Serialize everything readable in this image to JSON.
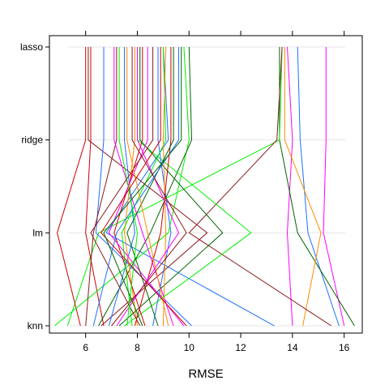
{
  "chart_data": {
    "type": "line",
    "title": "",
    "xlabel": "RMSE",
    "ylabel": "",
    "categories": [
      "knn",
      "lm",
      "ridge",
      "lasso"
    ],
    "xlim": [
      4.6,
      16.7
    ],
    "x_ticks": [
      6,
      8,
      10,
      12,
      14,
      16
    ],
    "grid": true,
    "legend": "none",
    "series_format": "values ordered as [knn, lm, ridge, lasso]",
    "series": [
      {
        "color": "#FF00FF",
        "values": [
          16.0,
          15.2,
          15.3,
          15.3
        ]
      },
      {
        "color": "#FF00FF",
        "values": [
          14.0,
          13.8,
          14.0,
          13.8
        ]
      },
      {
        "color": "#1F6FFF",
        "values": [
          15.8,
          14.6,
          14.3,
          14.2
        ]
      },
      {
        "color": "#006400",
        "values": [
          16.4,
          14.2,
          13.5,
          13.5
        ]
      },
      {
        "color": "#FF8C00",
        "values": [
          14.4,
          15.1,
          13.7,
          13.7
        ]
      },
      {
        "color": "#00EE00",
        "values": [
          5.3,
          6.5,
          13.5,
          13.6
        ]
      },
      {
        "color": "#8B1A1A",
        "values": [
          15.5,
          10.0,
          13.4,
          13.6
        ]
      },
      {
        "color": "#1F6FFF",
        "values": [
          13.3,
          6.8,
          9.2,
          9.0
        ]
      },
      {
        "color": "#CC0000",
        "values": [
          5.8,
          4.9,
          6.0,
          6.0
        ]
      },
      {
        "color": "#8B1A1A",
        "values": [
          6.6,
          10.7,
          6.1,
          6.1
        ]
      },
      {
        "color": "#CC0000",
        "values": [
          6.7,
          6.0,
          6.2,
          6.2
        ]
      },
      {
        "color": "#00EE00",
        "values": [
          4.8,
          9.2,
          10.0,
          9.8
        ]
      },
      {
        "color": "#006400",
        "values": [
          6.5,
          8.5,
          10.1,
          10.0
        ]
      },
      {
        "color": "#1F6FFF",
        "values": [
          10.1,
          6.4,
          6.7,
          6.7
        ]
      },
      {
        "color": "#8B1A1A",
        "values": [
          6.0,
          6.3,
          7.2,
          7.2
        ]
      },
      {
        "color": "#FF00FF",
        "values": [
          9.4,
          8.2,
          7.1,
          7.1
        ]
      },
      {
        "color": "#1F6FFF",
        "values": [
          6.9,
          7.9,
          7.5,
          7.5
        ]
      },
      {
        "color": "#00EE00",
        "values": [
          7.5,
          12.4,
          8.0,
          8.0
        ]
      },
      {
        "color": "#FF8C00",
        "values": [
          8.0,
          7.5,
          7.9,
          7.9
        ]
      },
      {
        "color": "#CC0000",
        "values": [
          8.3,
          7.1,
          8.2,
          8.2
        ]
      },
      {
        "color": "#006400",
        "values": [
          7.3,
          11.3,
          8.1,
          8.1
        ]
      },
      {
        "color": "#FF00FF",
        "values": [
          9.8,
          6.9,
          8.4,
          8.4
        ]
      },
      {
        "color": "#8B1A1A",
        "values": [
          8.1,
          6.2,
          8.6,
          8.6
        ]
      },
      {
        "color": "#1F6FFF",
        "values": [
          8.6,
          9.3,
          8.8,
          8.8
        ]
      },
      {
        "color": "#00EE00",
        "values": [
          7.8,
          7.4,
          9.1,
          9.0
        ]
      },
      {
        "color": "#FF8C00",
        "values": [
          9.0,
          9.1,
          9.0,
          9.1
        ]
      },
      {
        "color": "#CC0000",
        "values": [
          7.9,
          8.9,
          9.3,
          9.3
        ]
      },
      {
        "color": "#006400",
        "values": [
          8.8,
          7.6,
          9.4,
          9.4
        ]
      },
      {
        "color": "#FF00FF",
        "values": [
          7.2,
          9.6,
          8.0,
          8.0
        ]
      },
      {
        "color": "#8B1A1A",
        "values": [
          7.0,
          9.9,
          7.8,
          7.8
        ]
      },
      {
        "color": "#1F6FFF",
        "values": [
          6.3,
          7.2,
          9.6,
          9.6
        ]
      },
      {
        "color": "#00EE00",
        "values": [
          7.6,
          8.0,
          7.3,
          7.3
        ]
      },
      {
        "color": "#FF8C00",
        "values": [
          9.2,
          8.4,
          7.6,
          7.6
        ]
      },
      {
        "color": "#CC0000",
        "values": [
          9.9,
          6.6,
          8.9,
          8.9
        ]
      },
      {
        "color": "#006400",
        "values": [
          8.2,
          6.7,
          9.7,
          9.7
        ]
      }
    ]
  }
}
